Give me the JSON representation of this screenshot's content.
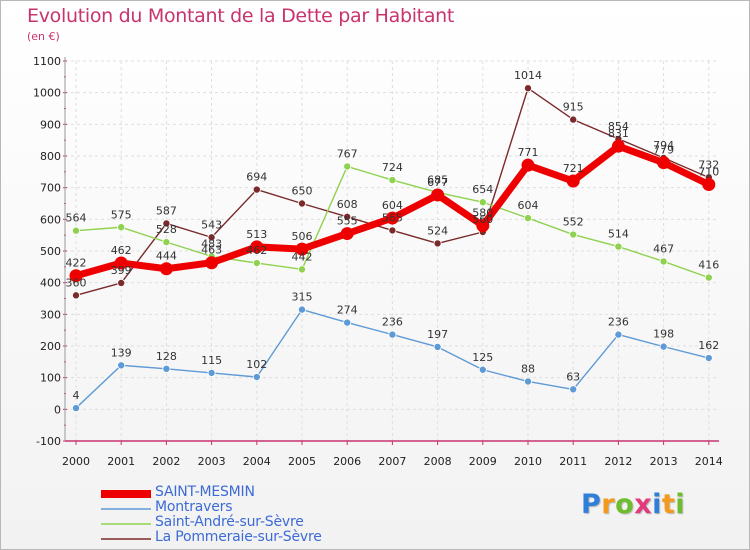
{
  "chart_data": {
    "type": "line",
    "title": "Evolution du Montant de la Dette par Habitant",
    "subtitle": "(en €)",
    "x": [
      "2000",
      "2001",
      "2002",
      "2003",
      "2004",
      "2005",
      "2006",
      "2007",
      "2008",
      "2009",
      "2010",
      "2011",
      "2012",
      "2013",
      "2014"
    ],
    "ylim": [
      -100,
      1100
    ],
    "yticks": [
      "-100",
      "0",
      "100",
      "200",
      "300",
      "400",
      "500",
      "600",
      "700",
      "800",
      "900",
      "1000",
      "1100"
    ],
    "grid": true,
    "legend_position": "bottom-left",
    "series": [
      {
        "name": "SAINT-MESMIN",
        "color": "#ee0000",
        "values": [
          422,
          462,
          444,
          463,
          513,
          506,
          555,
          604,
          677,
          580,
          771,
          721,
          831,
          779,
          710
        ],
        "labels": [
          "422",
          "462",
          "444",
          "463",
          "513",
          "506",
          "555",
          "604",
          "677",
          "580",
          "771",
          "721",
          "831",
          "779",
          "710"
        ]
      },
      {
        "name": "Montravers",
        "color": "#5e9ad6",
        "values": [
          4,
          139,
          128,
          115,
          102,
          315,
          274,
          236,
          197,
          125,
          88,
          63,
          236,
          198,
          162
        ],
        "labels": [
          "4",
          "139",
          "128",
          "115",
          "102",
          "315",
          "274",
          "236",
          "197",
          "125",
          "88",
          "63",
          "236",
          "198",
          "162"
        ]
      },
      {
        "name": "Saint-André-sur-Sèvre",
        "color": "#8fd24f",
        "values": [
          564,
          575,
          528,
          483,
          462,
          442,
          767,
          724,
          685,
          654,
          604,
          552,
          514,
          467,
          416
        ],
        "labels": [
          "564",
          "575",
          "528",
          "483",
          "462",
          "442",
          "767",
          "724",
          "685",
          "654",
          "604",
          "552",
          "514",
          "467",
          "416"
        ]
      },
      {
        "name": "La Pommeraie-sur-Sèvre",
        "color": "#7a2a2a",
        "values": [
          360,
          399,
          587,
          543,
          694,
          650,
          608,
          565,
          524,
          560,
          1014,
          915,
          854,
          794,
          732
        ],
        "labels": [
          "360",
          "399",
          "587",
          "543",
          "694",
          "650",
          "608",
          "565",
          "524",
          "560",
          "1014",
          "915",
          "854",
          "794",
          "732"
        ]
      }
    ]
  },
  "logo": {
    "letters": [
      "P",
      "r",
      "o",
      "x",
      "i",
      "t",
      "i"
    ],
    "colors": [
      "#2f7fd8",
      "#f39a1c",
      "#6dbd2e",
      "#e33a7c",
      "#2f7fd8",
      "#f39a1c",
      "#6dbd2e"
    ]
  }
}
